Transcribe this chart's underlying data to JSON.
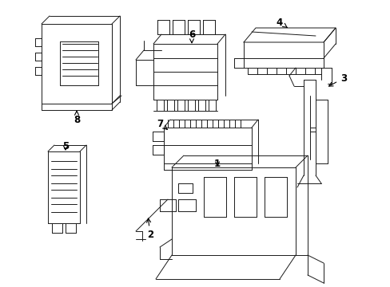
{
  "background_color": "#ffffff",
  "line_color": "#1a1a1a",
  "label_color": "#000000",
  "fig_width": 4.89,
  "fig_height": 3.6,
  "dpi": 100,
  "lw": 0.7
}
